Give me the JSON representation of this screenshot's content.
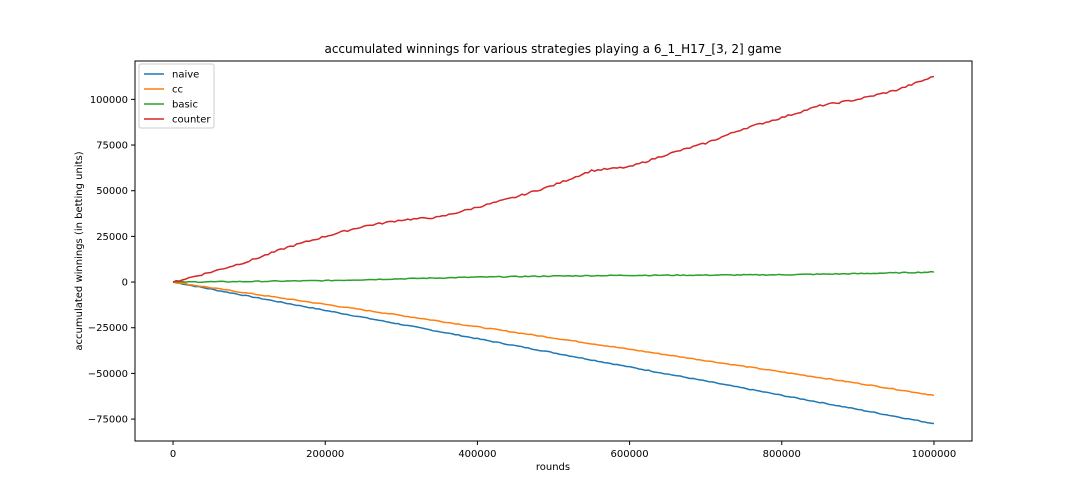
{
  "chart_data": {
    "type": "line",
    "title": "accumulated winnings for various strategies playing a 6_1_H17_[3, 2] game",
    "xlabel": "rounds",
    "ylabel": "accumulated winnings (in betting units)",
    "xlim": [
      -50000,
      1050000
    ],
    "ylim": [
      -87000,
      121000
    ],
    "xticks": [
      0,
      200000,
      400000,
      600000,
      800000,
      1000000
    ],
    "xtick_labels": [
      "0",
      "200000",
      "400000",
      "600000",
      "800000",
      "1000000"
    ],
    "yticks": [
      -75000,
      -50000,
      -25000,
      0,
      25000,
      50000,
      75000,
      100000
    ],
    "ytick_labels": [
      "−75000",
      "−50000",
      "−25000",
      "0",
      "25000",
      "50000",
      "75000",
      "100000"
    ],
    "grid": false,
    "legend_position": "top-left",
    "series": [
      {
        "name": "naive",
        "color": "#1f77b4",
        "x": [
          0,
          100000,
          200000,
          300000,
          400000,
          500000,
          600000,
          700000,
          800000,
          900000,
          1000000
        ],
        "y": [
          0,
          -7800,
          -15500,
          -23200,
          -31000,
          -38700,
          -46500,
          -54200,
          -62000,
          -69700,
          -77500
        ]
      },
      {
        "name": "cc",
        "color": "#ff7f0e",
        "x": [
          0,
          100000,
          200000,
          300000,
          400000,
          500000,
          600000,
          700000,
          800000,
          900000,
          1000000
        ],
        "y": [
          0,
          -6200,
          -12200,
          -18300,
          -24500,
          -30600,
          -36800,
          -43000,
          -49200,
          -55400,
          -62000
        ]
      },
      {
        "name": "basic",
        "color": "#2ca02c",
        "x": [
          0,
          100000,
          200000,
          300000,
          400000,
          500000,
          600000,
          700000,
          800000,
          900000,
          1000000
        ],
        "y": [
          0,
          300,
          800,
          1800,
          2700,
          3300,
          3700,
          3800,
          4000,
          4600,
          5500
        ]
      },
      {
        "name": "counter",
        "color": "#d62728",
        "x": [
          0,
          50000,
          100000,
          150000,
          200000,
          250000,
          300000,
          350000,
          400000,
          450000,
          500000,
          550000,
          600000,
          650000,
          700000,
          750000,
          800000,
          850000,
          900000,
          950000,
          1000000
        ],
        "y": [
          0,
          5500,
          11500,
          19000,
          25000,
          30500,
          34000,
          35500,
          41000,
          46500,
          53000,
          61000,
          63000,
          70000,
          76000,
          84000,
          90000,
          96500,
          100000,
          105000,
          112500
        ]
      }
    ]
  }
}
